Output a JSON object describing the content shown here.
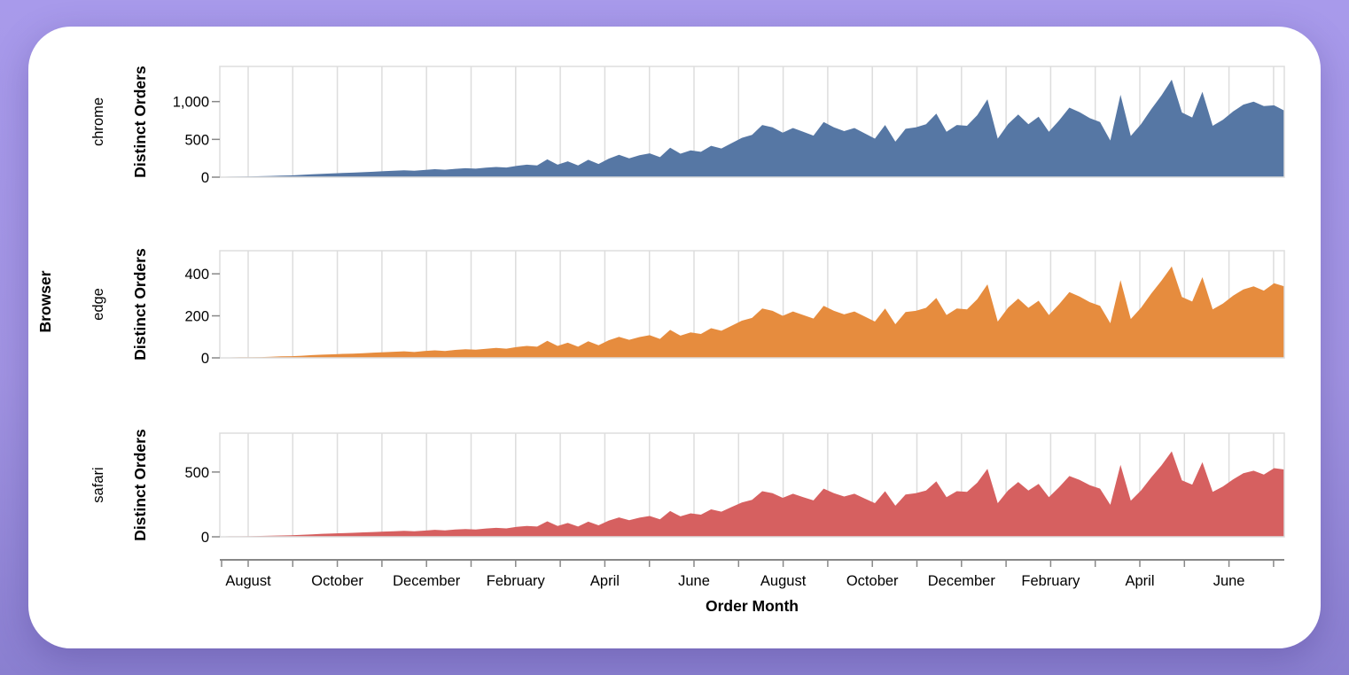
{
  "page": {
    "background_top": "#a89aeb",
    "background_bottom": "#8a7fd0",
    "card_color": "#ffffff"
  },
  "colors": {
    "gridline": "#dddddd",
    "panel_border": "#dddddd",
    "axis_domain": "#888888",
    "label_text": "#000000"
  },
  "chart_data": {
    "type": "area",
    "facet_title": "Browser",
    "xlabel": "Order Month",
    "ylabel": "Distinct Orders",
    "x_tick_labels": [
      "August",
      "October",
      "December",
      "February",
      "April",
      "June",
      "August",
      "October",
      "December",
      "February",
      "April",
      "June"
    ],
    "x_note": "weekly points spanning ~24 months, gridlines at each month",
    "legend_position": "none",
    "grid": "vertical-only",
    "series": [
      {
        "name": "chrome",
        "color": "#5677a4",
        "y_ticks": [
          0,
          500,
          1000
        ],
        "y_tick_labels": [
          "0",
          "500",
          "1,000"
        ],
        "y_scale_max": 1465,
        "values": [
          5,
          7,
          8,
          10,
          13,
          16,
          20,
          24,
          30,
          38,
          45,
          50,
          55,
          60,
          66,
          72,
          78,
          85,
          90,
          84,
          95,
          105,
          98,
          110,
          118,
          112,
          125,
          135,
          128,
          150,
          165,
          155,
          235,
          165,
          210,
          155,
          230,
          175,
          245,
          295,
          250,
          290,
          315,
          265,
          390,
          310,
          355,
          335,
          415,
          380,
          450,
          520,
          560,
          690,
          660,
          590,
          650,
          600,
          550,
          730,
          660,
          610,
          650,
          580,
          510,
          690,
          470,
          640,
          660,
          700,
          840,
          600,
          690,
          680,
          820,
          1030,
          510,
          700,
          830,
          700,
          800,
          600,
          750,
          920,
          860,
          780,
          730,
          485,
          1090,
          545,
          700,
          900,
          1080,
          1290,
          855,
          790,
          1130,
          680,
          760,
          870,
          960,
          1000,
          940,
          950,
          880
        ]
      },
      {
        "name": "edge",
        "color": "#e68c3e",
        "y_ticks": [
          0,
          200,
          400
        ],
        "y_tick_labels": [
          "0",
          "200",
          "400"
        ],
        "y_scale_max": 510,
        "values": [
          2,
          2,
          3,
          3,
          4,
          5,
          7,
          8,
          10,
          13,
          15,
          17,
          19,
          20,
          22,
          25,
          27,
          29,
          31,
          28,
          33,
          36,
          33,
          38,
          41,
          39,
          43,
          47,
          44,
          52,
          57,
          53,
          81,
          57,
          72,
          53,
          79,
          60,
          84,
          100,
          86,
          99,
          108,
          90,
          133,
          106,
          121,
          114,
          141,
          129,
          153,
          177,
          190,
          235,
          224,
          200,
          221,
          204,
          187,
          248,
          224,
          207,
          221,
          197,
          173,
          235,
          160,
          218,
          224,
          238,
          285,
          204,
          235,
          231,
          279,
          350,
          173,
          238,
          282,
          238,
          272,
          204,
          255,
          313,
          292,
          265,
          248,
          165,
          370,
          185,
          238,
          306,
          367,
          435,
          290,
          268,
          384,
          231,
          258,
          296,
          326,
          340,
          320,
          355,
          340
        ]
      },
      {
        "name": "safari",
        "color": "#d66060",
        "y_ticks": [
          0,
          500
        ],
        "y_tick_labels": [
          "0",
          "500"
        ],
        "y_scale_max": 800,
        "values": [
          3,
          4,
          4,
          5,
          7,
          8,
          10,
          12,
          15,
          19,
          23,
          26,
          28,
          31,
          34,
          37,
          40,
          43,
          46,
          43,
          48,
          54,
          50,
          56,
          60,
          57,
          64,
          69,
          65,
          77,
          84,
          79,
          120,
          84,
          107,
          79,
          117,
          89,
          125,
          150,
          128,
          148,
          161,
          135,
          199,
          158,
          181,
          171,
          212,
          194,
          230,
          265,
          286,
          352,
          337,
          301,
          332,
          306,
          281,
          372,
          337,
          311,
          332,
          296,
          260,
          352,
          240,
          326,
          337,
          357,
          428,
          306,
          352,
          347,
          418,
          525,
          260,
          357,
          423,
          357,
          408,
          306,
          383,
          469,
          439,
          398,
          372,
          247,
          556,
          278,
          357,
          459,
          551,
          660,
          436,
          403,
          576,
          347,
          388,
          444,
          490,
          510,
          480,
          530,
          520
        ]
      }
    ]
  }
}
